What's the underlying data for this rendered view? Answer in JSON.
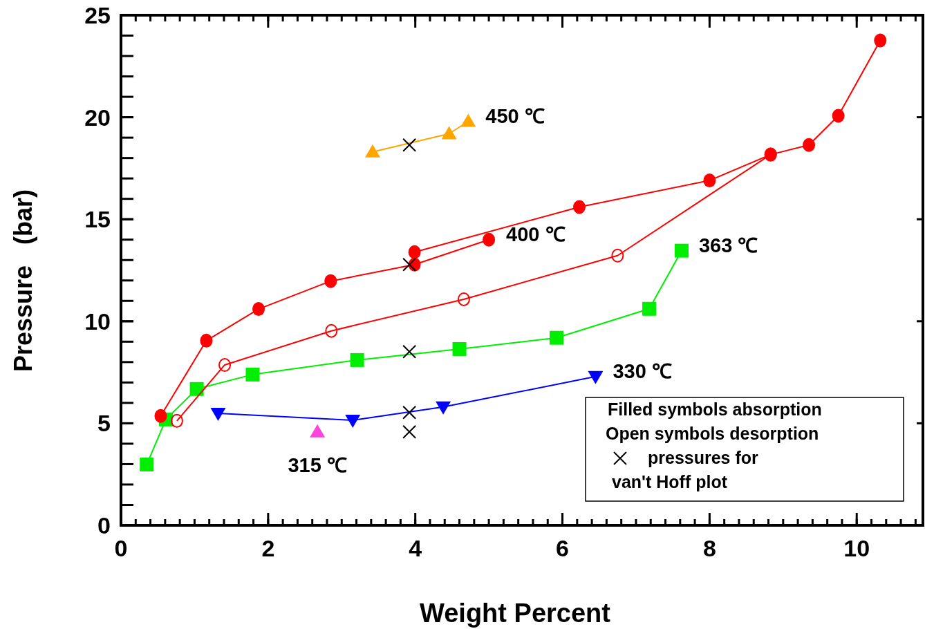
{
  "chart_data": {
    "type": "line",
    "xlabel": "Weight Percent",
    "ylabel": "Pressure   (bar)",
    "xlim": [
      0,
      10.9
    ],
    "ylim": [
      0,
      25
    ],
    "xticks": [
      0,
      2,
      4,
      6,
      8,
      10
    ],
    "yticks": [
      0,
      5,
      10,
      15,
      20,
      25
    ],
    "grid": false,
    "legend": "bottom right",
    "series": [
      {
        "name": "400 ℃",
        "color": "#ff0000",
        "marker": "circle",
        "x": [
          0.54,
          1.16,
          1.87,
          2.85,
          3.99,
          5.0
        ],
        "values": [
          5.36,
          9.05,
          10.6,
          11.97,
          12.78,
          14.0
        ]
      },
      {
        "color": "#ff0000",
        "marker": "circle",
        "x": [
          3.99,
          6.23,
          8.0,
          8.83,
          9.35,
          9.75,
          10.32
        ],
        "values": [
          13.39,
          15.6,
          16.9,
          18.17,
          18.64,
          20.07,
          23.76
        ]
      },
      {
        "color": "#ff0000",
        "marker": "circle-open",
        "x": [
          0.76,
          1.41,
          2.86,
          4.66,
          6.75,
          8.83
        ],
        "values": [
          5.12,
          7.86,
          9.53,
          11.08,
          13.22,
          18.17
        ]
      },
      {
        "name": "363 ℃",
        "color": "#00ee00",
        "marker": "square",
        "x": [
          0.35,
          0.61,
          1.03,
          1.79,
          3.21,
          4.6,
          5.92,
          7.18,
          7.62
        ],
        "values": [
          2.98,
          5.19,
          6.68,
          7.39,
          8.1,
          8.64,
          9.19,
          10.61,
          13.46
        ]
      },
      {
        "name": "330 ℃",
        "color": "#0000ff",
        "marker": "triangle-down",
        "x": [
          1.32,
          3.15,
          4.38,
          6.45
        ],
        "values": [
          5.49,
          5.15,
          5.8,
          7.29
        ]
      },
      {
        "name": "450 ℃",
        "color": "#ffa500",
        "marker": "triangle",
        "x": [
          3.42,
          4.46,
          4.72
        ],
        "values": [
          18.3,
          19.19,
          19.8
        ]
      },
      {
        "type": "scatter",
        "name": "315 ℃",
        "color": "#ff44dd",
        "marker": "triangle",
        "x": [
          2.67
        ],
        "values": [
          4.58
        ]
      },
      {
        "type": "scatter",
        "name": "pressures for van't Hoff plot",
        "color": "#000000",
        "marker": "cross",
        "x": [
          3.92,
          3.92,
          3.92,
          3.92,
          3.92
        ],
        "values": [
          18.64,
          12.78,
          8.51,
          5.53,
          4.58
        ]
      }
    ],
    "annotations": [
      "Filled symbols absorption",
      "Open symbols desorption"
    ]
  }
}
